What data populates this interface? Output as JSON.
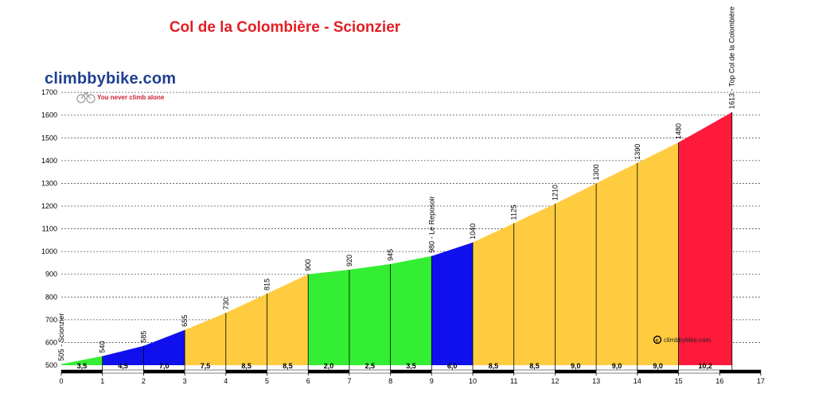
{
  "chart_data": {
    "type": "area",
    "title": "Col de la Colombière - Scionzier",
    "xlim": [
      0,
      17
    ],
    "ylim": [
      500,
      1700
    ],
    "x_ticks": [
      0,
      1,
      2,
      3,
      4,
      5,
      6,
      7,
      8,
      9,
      10,
      11,
      12,
      13,
      14,
      15,
      16,
      17
    ],
    "y_ticks": [
      500,
      600,
      700,
      800,
      900,
      1000,
      1100,
      1200,
      1300,
      1400,
      1500,
      1600,
      1700
    ],
    "grid": true,
    "points": [
      {
        "x": 0,
        "y": 505,
        "label": "505 - Scionzier"
      },
      {
        "x": 1,
        "y": 540,
        "label": "540"
      },
      {
        "x": 2,
        "y": 585,
        "label": "585"
      },
      {
        "x": 3,
        "y": 655,
        "label": "655"
      },
      {
        "x": 4,
        "y": 730,
        "label": "730"
      },
      {
        "x": 5,
        "y": 815,
        "label": "815"
      },
      {
        "x": 6,
        "y": 900,
        "label": "900"
      },
      {
        "x": 7,
        "y": 920,
        "label": "920"
      },
      {
        "x": 8,
        "y": 945,
        "label": "945"
      },
      {
        "x": 9,
        "y": 980,
        "label": "980 - Le Reposoir"
      },
      {
        "x": 10,
        "y": 1040,
        "label": "1040"
      },
      {
        "x": 11,
        "y": 1125,
        "label": "1125"
      },
      {
        "x": 12,
        "y": 1210,
        "label": "1210"
      },
      {
        "x": 13,
        "y": 1300,
        "label": "1300"
      },
      {
        "x": 14,
        "y": 1390,
        "label": "1390"
      },
      {
        "x": 15,
        "y": 1480,
        "label": "1480"
      },
      {
        "x": 16.3,
        "y": 1613,
        "label": "1613 - Top Col de la Colombière"
      }
    ],
    "segments": [
      {
        "gradient": "3,5",
        "color": "#33ee33"
      },
      {
        "gradient": "4,5",
        "color": "#1010ee"
      },
      {
        "gradient": "7,0",
        "color": "#1010ee"
      },
      {
        "gradient": "7,5",
        "color": "#ffcc40"
      },
      {
        "gradient": "8,5",
        "color": "#ffcc40"
      },
      {
        "gradient": "8,5",
        "color": "#ffcc40"
      },
      {
        "gradient": "2,0",
        "color": "#33ee33"
      },
      {
        "gradient": "2,5",
        "color": "#33ee33"
      },
      {
        "gradient": "3,5",
        "color": "#33ee33"
      },
      {
        "gradient": "6,0",
        "color": "#1010ee"
      },
      {
        "gradient": "8,5",
        "color": "#ffcc40"
      },
      {
        "gradient": "8,5",
        "color": "#ffcc40"
      },
      {
        "gradient": "9,0",
        "color": "#ffcc40"
      },
      {
        "gradient": "9,0",
        "color": "#ffcc40"
      },
      {
        "gradient": "9,0",
        "color": "#ffcc40"
      },
      {
        "gradient": "10,2",
        "color": "#ff1a3c"
      }
    ]
  },
  "branding": {
    "logo_name": "climbbybike.com",
    "tagline": "You never climb alone",
    "watermark": "climbbybike.com"
  }
}
